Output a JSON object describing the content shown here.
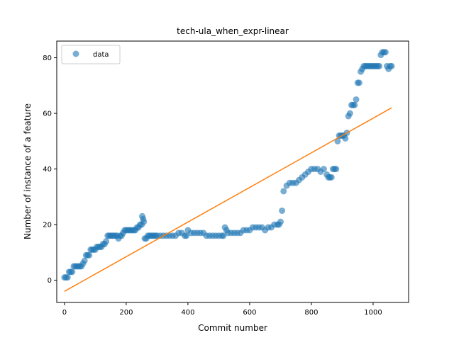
{
  "chart_data": {
    "type": "scatter",
    "title": "tech-ula_when_expr-linear",
    "xlabel": "Commit number",
    "ylabel": "Number of instance of a feature",
    "xlim": [
      -25,
      1115
    ],
    "ylim": [
      -8,
      86
    ],
    "xticks": [
      0,
      200,
      400,
      600,
      800,
      1000
    ],
    "yticks": [
      0,
      20,
      40,
      60,
      80
    ],
    "grid": false,
    "legend": {
      "position": "top-left",
      "entries": [
        "data"
      ]
    },
    "colors": {
      "data": "#1f77b4",
      "fit": "#ff7f0e"
    },
    "series": [
      {
        "name": "data",
        "kind": "scatter",
        "x": [
          0,
          5,
          10,
          15,
          20,
          25,
          30,
          35,
          40,
          45,
          50,
          55,
          60,
          65,
          70,
          75,
          80,
          85,
          90,
          95,
          100,
          105,
          110,
          115,
          120,
          125,
          130,
          135,
          140,
          145,
          150,
          155,
          160,
          165,
          170,
          175,
          180,
          185,
          190,
          195,
          200,
          205,
          210,
          215,
          220,
          225,
          230,
          235,
          240,
          245,
          250,
          252,
          255,
          257,
          260,
          265,
          270,
          275,
          280,
          285,
          290,
          295,
          300,
          310,
          320,
          330,
          340,
          350,
          360,
          370,
          380,
          390,
          395,
          400,
          410,
          420,
          430,
          440,
          450,
          460,
          470,
          480,
          490,
          500,
          510,
          515,
          520,
          525,
          530,
          540,
          550,
          560,
          570,
          580,
          590,
          600,
          610,
          620,
          630,
          640,
          650,
          660,
          670,
          680,
          690,
          695,
          700,
          705,
          710,
          720,
          730,
          740,
          750,
          760,
          770,
          780,
          790,
          800,
          810,
          820,
          830,
          840,
          850,
          855,
          860,
          865,
          870,
          875,
          880,
          885,
          890,
          895,
          900,
          905,
          910,
          915,
          920,
          925,
          930,
          935,
          940,
          945,
          950,
          955,
          960,
          965,
          970,
          975,
          980,
          985,
          990,
          995,
          1000,
          1005,
          1010,
          1015,
          1020,
          1025,
          1030,
          1035,
          1040,
          1045,
          1050,
          1055,
          1060
        ],
        "y": [
          1,
          1,
          1,
          3,
          3,
          3,
          5,
          5,
          5,
          5,
          5,
          5,
          6,
          7,
          9,
          9,
          9,
          11,
          11,
          11,
          11,
          12,
          12,
          12,
          12,
          13,
          13,
          14,
          16,
          16,
          16,
          16,
          16,
          16,
          16,
          15,
          16,
          16,
          17,
          18,
          18,
          18,
          18,
          18,
          18,
          18,
          18,
          19,
          19,
          20,
          20,
          23,
          22,
          21,
          15,
          15,
          16,
          16,
          16,
          16,
          16,
          16,
          16,
          16,
          16,
          16,
          16,
          16,
          16,
          17,
          17,
          16,
          16,
          18,
          17,
          17,
          17,
          17,
          17,
          16,
          16,
          16,
          16,
          16,
          16,
          16,
          19,
          18,
          17,
          17,
          17,
          17,
          17,
          18,
          18,
          18,
          19,
          19,
          19,
          19,
          18,
          19,
          19,
          20,
          20,
          20,
          21,
          25,
          32,
          34,
          35,
          35,
          35,
          36,
          37,
          38,
          39,
          40,
          40,
          40,
          39,
          40,
          38,
          37,
          37,
          37,
          40,
          40,
          40,
          50,
          52,
          52,
          52,
          52,
          51,
          53,
          59,
          60,
          63,
          63,
          63,
          65,
          71,
          71,
          75,
          76,
          77,
          77,
          77,
          77,
          77,
          77,
          77,
          77,
          77,
          77,
          77,
          81,
          82,
          82,
          82,
          77,
          76,
          77,
          77
        ]
      },
      {
        "name": "",
        "kind": "line",
        "x": [
          0,
          1060
        ],
        "y": [
          -4,
          62
        ]
      }
    ]
  }
}
